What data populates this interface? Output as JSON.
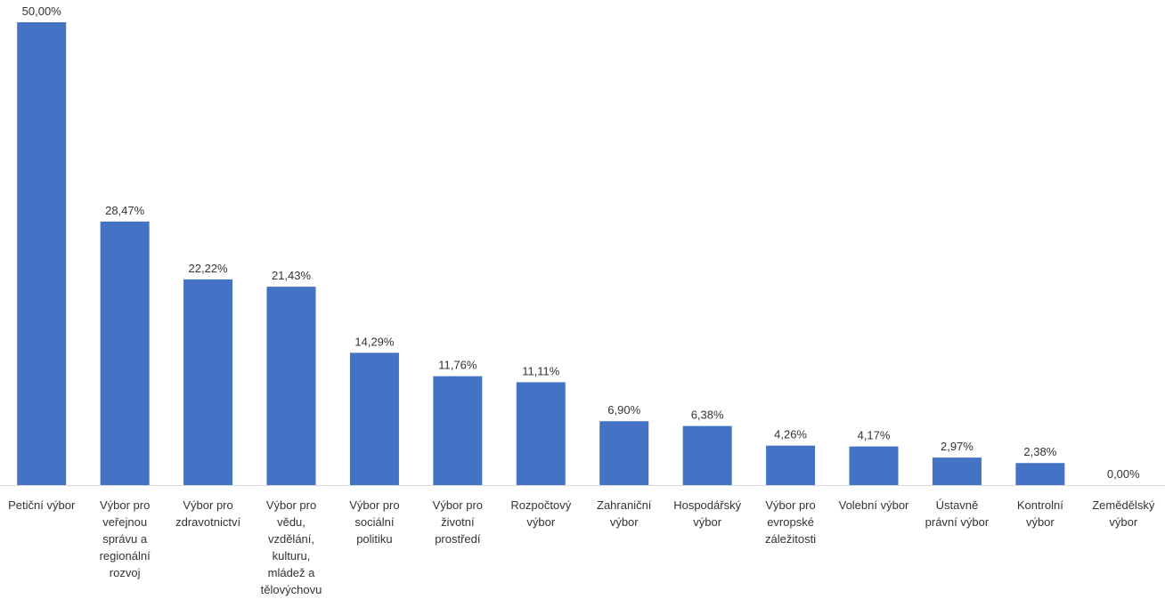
{
  "chart_data": {
    "type": "bar",
    "categories": [
      [
        "Petiční výbor"
      ],
      [
        "Výbor pro",
        "veřejnou",
        "správu a",
        "regionální",
        "rozvoj"
      ],
      [
        "Výbor pro",
        "zdravotnictví"
      ],
      [
        "Výbor pro",
        "vědu,",
        "vzdělání,",
        "kulturu,",
        "mládež a",
        "tělovýchovu"
      ],
      [
        "Výbor pro",
        "sociální",
        "politiku"
      ],
      [
        "Výbor pro",
        "životní",
        "prostředí"
      ],
      [
        "Rozpočtový",
        "výbor"
      ],
      [
        "Zahraniční",
        "výbor"
      ],
      [
        "Hospodářský",
        "výbor"
      ],
      [
        "Výbor pro",
        "evropské",
        "záležitosti"
      ],
      [
        "Volební výbor"
      ],
      [
        "Ústavně",
        "právní výbor"
      ],
      [
        "Kontrolní",
        "výbor"
      ],
      [
        "Zemědělský",
        "výbor"
      ]
    ],
    "values": [
      50.0,
      28.47,
      22.22,
      21.43,
      14.29,
      11.76,
      11.11,
      6.9,
      6.38,
      4.26,
      4.17,
      2.97,
      2.38,
      0.0
    ],
    "labels": [
      "50,00%",
      "28,47%",
      "22,22%",
      "21,43%",
      "14,29%",
      "11,76%",
      "11,11%",
      "6,90%",
      "6,38%",
      "4,26%",
      "4,17%",
      "2,97%",
      "2,38%",
      "0,00%"
    ],
    "ylim": [
      0,
      50
    ],
    "grid": false,
    "legend": "none",
    "bar_color": "#4472C4"
  }
}
